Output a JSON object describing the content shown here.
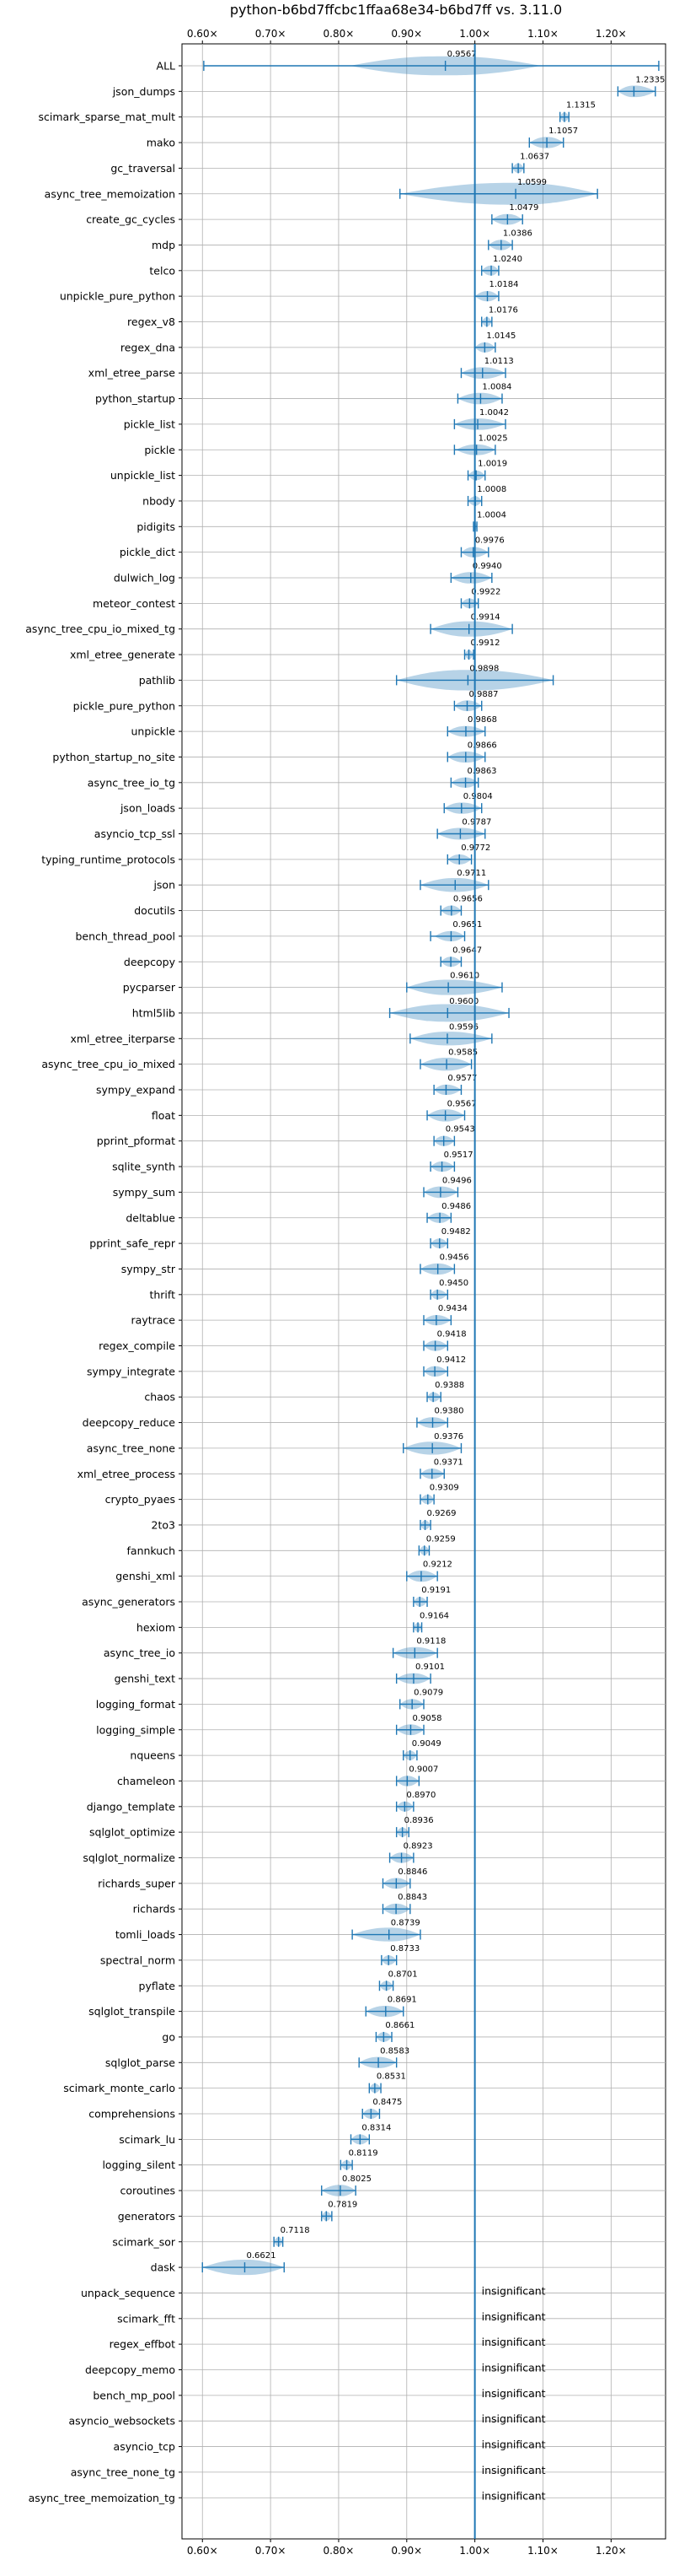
{
  "chart_data": {
    "type": "violin",
    "title": "python-b6bd7ffcbc1ffaa68e34-b6bd7ff vs. 3.11.0",
    "xlim": [
      0.57,
      1.28
    ],
    "reference_x": 1.0,
    "x_ticks": [
      0.6,
      0.7,
      0.8,
      0.9,
      1.0,
      1.1,
      1.2
    ],
    "x_tick_labels": [
      "0.60×",
      "0.70×",
      "0.80×",
      "0.90×",
      "1.00×",
      "1.10×",
      "1.20×"
    ],
    "grid": true,
    "benchmarks": [
      {
        "name": "ALL",
        "label": "0.9567",
        "mean": 0.9567,
        "min": 0.602,
        "max": 1.27,
        "spread": 0.07
      },
      {
        "name": "json_dumps",
        "label": "1.2335",
        "mean": 1.2335,
        "min": 1.21,
        "max": 1.265,
        "spread": 0.02
      },
      {
        "name": "scimark_sparse_mat_mult",
        "label": "1.1315",
        "mean": 1.1315,
        "min": 1.125,
        "max": 1.138,
        "spread": 0.006
      },
      {
        "name": "mako",
        "label": "1.1057",
        "mean": 1.1057,
        "min": 1.08,
        "max": 1.13,
        "spread": 0.018
      },
      {
        "name": "gc_traversal",
        "label": "1.0637",
        "mean": 1.0637,
        "min": 1.055,
        "max": 1.072,
        "spread": 0.008
      },
      {
        "name": "async_tree_memoization",
        "label": "1.0599",
        "mean": 1.0599,
        "min": 0.89,
        "max": 1.18,
        "spread": 0.12
      },
      {
        "name": "create_gc_cycles",
        "label": "1.0479",
        "mean": 1.0479,
        "min": 1.025,
        "max": 1.07,
        "spread": 0.015
      },
      {
        "name": "mdp",
        "label": "1.0386",
        "mean": 1.0386,
        "min": 1.02,
        "max": 1.055,
        "spread": 0.012
      },
      {
        "name": "telco",
        "label": "1.0240",
        "mean": 1.024,
        "min": 1.01,
        "max": 1.035,
        "spread": 0.01
      },
      {
        "name": "unpickle_pure_python",
        "label": "1.0184",
        "mean": 1.0184,
        "min": 1.0,
        "max": 1.035,
        "spread": 0.012
      },
      {
        "name": "regex_v8",
        "label": "1.0176",
        "mean": 1.0176,
        "min": 1.01,
        "max": 1.025,
        "spread": 0.006
      },
      {
        "name": "regex_dna",
        "label": "1.0145",
        "mean": 1.0145,
        "min": 1.0,
        "max": 1.03,
        "spread": 0.01
      },
      {
        "name": "xml_etree_parse",
        "label": "1.0113",
        "mean": 1.0113,
        "min": 0.98,
        "max": 1.045,
        "spread": 0.02
      },
      {
        "name": "python_startup",
        "label": "1.0084",
        "mean": 1.0084,
        "min": 0.975,
        "max": 1.04,
        "spread": 0.02
      },
      {
        "name": "pickle_list",
        "label": "1.0042",
        "mean": 1.0042,
        "min": 0.97,
        "max": 1.045,
        "spread": 0.02
      },
      {
        "name": "pickle",
        "label": "1.0025",
        "mean": 1.0025,
        "min": 0.97,
        "max": 1.03,
        "spread": 0.015
      },
      {
        "name": "unpickle_list",
        "label": "1.0019",
        "mean": 1.0019,
        "min": 0.99,
        "max": 1.015,
        "spread": 0.008
      },
      {
        "name": "nbody",
        "label": "1.0008",
        "mean": 1.0008,
        "min": 0.99,
        "max": 1.01,
        "spread": 0.006
      },
      {
        "name": "pidigits",
        "label": "1.0004",
        "mean": 1.0004,
        "min": 0.998,
        "max": 1.003,
        "spread": 0.003
      },
      {
        "name": "pickle_dict",
        "label": "0.9976",
        "mean": 0.9976,
        "min": 0.98,
        "max": 1.02,
        "spread": 0.012
      },
      {
        "name": "dulwich_log",
        "label": "0.9940",
        "mean": 0.994,
        "min": 0.965,
        "max": 1.025,
        "spread": 0.02
      },
      {
        "name": "meteor_contest",
        "label": "0.9922",
        "mean": 0.9922,
        "min": 0.98,
        "max": 1.005,
        "spread": 0.008
      },
      {
        "name": "async_tree_cpu_io_mixed_tg",
        "label": "0.9914",
        "mean": 0.9914,
        "min": 0.935,
        "max": 1.055,
        "spread": 0.045
      },
      {
        "name": "xml_etree_generate",
        "label": "0.9912",
        "mean": 0.9912,
        "min": 0.985,
        "max": 0.998,
        "spread": 0.005
      },
      {
        "name": "pathlib",
        "label": "0.9898",
        "mean": 0.9898,
        "min": 0.885,
        "max": 1.115,
        "spread": 0.08
      },
      {
        "name": "pickle_pure_python",
        "label": "0.9887",
        "mean": 0.9887,
        "min": 0.97,
        "max": 1.01,
        "spread": 0.015
      },
      {
        "name": "unpickle",
        "label": "0.9868",
        "mean": 0.9868,
        "min": 0.96,
        "max": 1.015,
        "spread": 0.015
      },
      {
        "name": "python_startup_no_site",
        "label": "0.9866",
        "mean": 0.9866,
        "min": 0.96,
        "max": 1.015,
        "spread": 0.018
      },
      {
        "name": "async_tree_io_tg",
        "label": "0.9863",
        "mean": 0.9863,
        "min": 0.965,
        "max": 1.005,
        "spread": 0.012
      },
      {
        "name": "json_loads",
        "label": "0.9804",
        "mean": 0.9804,
        "min": 0.955,
        "max": 1.01,
        "spread": 0.018
      },
      {
        "name": "asyncio_tcp_ssl",
        "label": "0.9787",
        "mean": 0.9787,
        "min": 0.945,
        "max": 1.015,
        "spread": 0.022
      },
      {
        "name": "typing_runtime_protocols",
        "label": "0.9772",
        "mean": 0.9772,
        "min": 0.96,
        "max": 0.995,
        "spread": 0.01
      },
      {
        "name": "json",
        "label": "0.9711",
        "mean": 0.9711,
        "min": 0.92,
        "max": 1.02,
        "spread": 0.035
      },
      {
        "name": "docutils",
        "label": "0.9656",
        "mean": 0.9656,
        "min": 0.95,
        "max": 0.98,
        "spread": 0.01
      },
      {
        "name": "bench_thread_pool",
        "label": "0.9651",
        "mean": 0.9651,
        "min": 0.935,
        "max": 0.985,
        "spread": 0.012
      },
      {
        "name": "deepcopy",
        "label": "0.9647",
        "mean": 0.9647,
        "min": 0.95,
        "max": 0.98,
        "spread": 0.01
      },
      {
        "name": "pycparser",
        "label": "0.9610",
        "mean": 0.961,
        "min": 0.9,
        "max": 1.04,
        "spread": 0.045
      },
      {
        "name": "html5lib",
        "label": "0.9600",
        "mean": 0.96,
        "min": 0.875,
        "max": 1.05,
        "spread": 0.06
      },
      {
        "name": "xml_etree_iterparse",
        "label": "0.9596",
        "mean": 0.9596,
        "min": 0.905,
        "max": 1.025,
        "spread": 0.035
      },
      {
        "name": "async_tree_cpu_io_mixed",
        "label": "0.9585",
        "mean": 0.9585,
        "min": 0.92,
        "max": 0.995,
        "spread": 0.03
      },
      {
        "name": "sympy_expand",
        "label": "0.9577",
        "mean": 0.9577,
        "min": 0.94,
        "max": 0.98,
        "spread": 0.012
      },
      {
        "name": "float",
        "label": "0.9567",
        "mean": 0.9567,
        "min": 0.93,
        "max": 0.985,
        "spread": 0.025
      },
      {
        "name": "pprint_pformat",
        "label": "0.9543",
        "mean": 0.9543,
        "min": 0.94,
        "max": 0.97,
        "spread": 0.01
      },
      {
        "name": "sqlite_synth",
        "label": "0.9517",
        "mean": 0.9517,
        "min": 0.935,
        "max": 0.97,
        "spread": 0.012
      },
      {
        "name": "sympy_sum",
        "label": "0.9496",
        "mean": 0.9496,
        "min": 0.925,
        "max": 0.975,
        "spread": 0.02
      },
      {
        "name": "deltablue",
        "label": "0.9486",
        "mean": 0.9486,
        "min": 0.93,
        "max": 0.965,
        "spread": 0.012
      },
      {
        "name": "pprint_safe_repr",
        "label": "0.9482",
        "mean": 0.9482,
        "min": 0.935,
        "max": 0.96,
        "spread": 0.008
      },
      {
        "name": "sympy_str",
        "label": "0.9456",
        "mean": 0.9456,
        "min": 0.92,
        "max": 0.97,
        "spread": 0.018
      },
      {
        "name": "thrift",
        "label": "0.9450",
        "mean": 0.945,
        "min": 0.935,
        "max": 0.96,
        "spread": 0.008
      },
      {
        "name": "raytrace",
        "label": "0.9434",
        "mean": 0.9434,
        "min": 0.925,
        "max": 0.965,
        "spread": 0.012
      },
      {
        "name": "regex_compile",
        "label": "0.9418",
        "mean": 0.9418,
        "min": 0.925,
        "max": 0.96,
        "spread": 0.012
      },
      {
        "name": "sympy_integrate",
        "label": "0.9412",
        "mean": 0.9412,
        "min": 0.925,
        "max": 0.96,
        "spread": 0.012
      },
      {
        "name": "chaos",
        "label": "0.9388",
        "mean": 0.9388,
        "min": 0.93,
        "max": 0.95,
        "spread": 0.007
      },
      {
        "name": "deepcopy_reduce",
        "label": "0.9380",
        "mean": 0.938,
        "min": 0.915,
        "max": 0.96,
        "spread": 0.015
      },
      {
        "name": "async_tree_none",
        "label": "0.9376",
        "mean": 0.9376,
        "min": 0.895,
        "max": 0.98,
        "spread": 0.03
      },
      {
        "name": "xml_etree_process",
        "label": "0.9371",
        "mean": 0.9371,
        "min": 0.92,
        "max": 0.955,
        "spread": 0.012
      },
      {
        "name": "crypto_pyaes",
        "label": "0.9309",
        "mean": 0.9309,
        "min": 0.92,
        "max": 0.94,
        "spread": 0.007
      },
      {
        "name": "2to3",
        "label": "0.9269",
        "mean": 0.9269,
        "min": 0.92,
        "max": 0.935,
        "spread": 0.005
      },
      {
        "name": "fannkuch",
        "label": "0.9259",
        "mean": 0.9259,
        "min": 0.918,
        "max": 0.933,
        "spread": 0.005
      },
      {
        "name": "genshi_xml",
        "label": "0.9212",
        "mean": 0.9212,
        "min": 0.9,
        "max": 0.945,
        "spread": 0.018
      },
      {
        "name": "async_generators",
        "label": "0.9191",
        "mean": 0.9191,
        "min": 0.91,
        "max": 0.93,
        "spread": 0.007
      },
      {
        "name": "hexiom",
        "label": "0.9164",
        "mean": 0.9164,
        "min": 0.91,
        "max": 0.922,
        "spread": 0.004
      },
      {
        "name": "async_tree_io",
        "label": "0.9118",
        "mean": 0.9118,
        "min": 0.88,
        "max": 0.945,
        "spread": 0.022
      },
      {
        "name": "genshi_text",
        "label": "0.9101",
        "mean": 0.9101,
        "min": 0.885,
        "max": 0.935,
        "spread": 0.015
      },
      {
        "name": "logging_format",
        "label": "0.9079",
        "mean": 0.9079,
        "min": 0.89,
        "max": 0.925,
        "spread": 0.012
      },
      {
        "name": "logging_simple",
        "label": "0.9058",
        "mean": 0.9058,
        "min": 0.885,
        "max": 0.925,
        "spread": 0.015
      },
      {
        "name": "nqueens",
        "label": "0.9049",
        "mean": 0.9049,
        "min": 0.895,
        "max": 0.915,
        "spread": 0.007
      },
      {
        "name": "chameleon",
        "label": "0.9007",
        "mean": 0.9007,
        "min": 0.885,
        "max": 0.918,
        "spread": 0.012
      },
      {
        "name": "django_template",
        "label": "0.8970",
        "mean": 0.897,
        "min": 0.885,
        "max": 0.91,
        "spread": 0.01
      },
      {
        "name": "sqlglot_optimize",
        "label": "0.8936",
        "mean": 0.8936,
        "min": 0.885,
        "max": 0.903,
        "spread": 0.006
      },
      {
        "name": "sqlglot_normalize",
        "label": "0.8923",
        "mean": 0.8923,
        "min": 0.875,
        "max": 0.91,
        "spread": 0.012
      },
      {
        "name": "richards_super",
        "label": "0.8846",
        "mean": 0.8846,
        "min": 0.865,
        "max": 0.905,
        "spread": 0.015
      },
      {
        "name": "richards",
        "label": "0.8843",
        "mean": 0.8843,
        "min": 0.865,
        "max": 0.905,
        "spread": 0.015
      },
      {
        "name": "tomli_loads",
        "label": "0.8739",
        "mean": 0.8739,
        "min": 0.82,
        "max": 0.92,
        "spread": 0.035
      },
      {
        "name": "spectral_norm",
        "label": "0.8733",
        "mean": 0.8733,
        "min": 0.863,
        "max": 0.885,
        "spread": 0.007
      },
      {
        "name": "pyflate",
        "label": "0.8701",
        "mean": 0.8701,
        "min": 0.86,
        "max": 0.88,
        "spread": 0.007
      },
      {
        "name": "sqlglot_transpile",
        "label": "0.8691",
        "mean": 0.8691,
        "min": 0.84,
        "max": 0.895,
        "spread": 0.018
      },
      {
        "name": "go",
        "label": "0.8661",
        "mean": 0.8661,
        "min": 0.855,
        "max": 0.878,
        "spread": 0.008
      },
      {
        "name": "sqlglot_parse",
        "label": "0.8583",
        "mean": 0.8583,
        "min": 0.83,
        "max": 0.885,
        "spread": 0.018
      },
      {
        "name": "scimark_monte_carlo",
        "label": "0.8531",
        "mean": 0.8531,
        "min": 0.845,
        "max": 0.862,
        "spread": 0.006
      },
      {
        "name": "comprehensions",
        "label": "0.8475",
        "mean": 0.8475,
        "min": 0.835,
        "max": 0.86,
        "spread": 0.01
      },
      {
        "name": "scimark_lu",
        "label": "0.8314",
        "mean": 0.8314,
        "min": 0.818,
        "max": 0.845,
        "spread": 0.01
      },
      {
        "name": "logging_silent",
        "label": "0.8119",
        "mean": 0.8119,
        "min": 0.803,
        "max": 0.82,
        "spread": 0.006
      },
      {
        "name": "coroutines",
        "label": "0.8025",
        "mean": 0.8025,
        "min": 0.775,
        "max": 0.825,
        "spread": 0.02
      },
      {
        "name": "generators",
        "label": "0.7819",
        "mean": 0.7819,
        "min": 0.775,
        "max": 0.79,
        "spread": 0.006
      },
      {
        "name": "scimark_sor",
        "label": "0.7118",
        "mean": 0.7118,
        "min": 0.705,
        "max": 0.718,
        "spread": 0.005
      },
      {
        "name": "dask",
        "label": "0.6621",
        "mean": 0.6621,
        "min": 0.6,
        "max": 0.72,
        "spread": 0.045
      },
      {
        "name": "unpack_sequence",
        "label": "insignificant",
        "insignificant": true
      },
      {
        "name": "scimark_fft",
        "label": "insignificant",
        "insignificant": true
      },
      {
        "name": "regex_effbot",
        "label": "insignificant",
        "insignificant": true
      },
      {
        "name": "deepcopy_memo",
        "label": "insignificant",
        "insignificant": true
      },
      {
        "name": "bench_mp_pool",
        "label": "insignificant",
        "insignificant": true
      },
      {
        "name": "asyncio_websockets",
        "label": "insignificant",
        "insignificant": true
      },
      {
        "name": "asyncio_tcp",
        "label": "insignificant",
        "insignificant": true
      },
      {
        "name": "async_tree_none_tg",
        "label": "insignificant",
        "insignificant": true
      },
      {
        "name": "async_tree_memoization_tg",
        "label": "insignificant",
        "insignificant": true
      }
    ],
    "colors": {
      "body": "#1f77b4",
      "grid": "#b0b0b0",
      "axis": "#000000",
      "text": "#000000"
    }
  }
}
